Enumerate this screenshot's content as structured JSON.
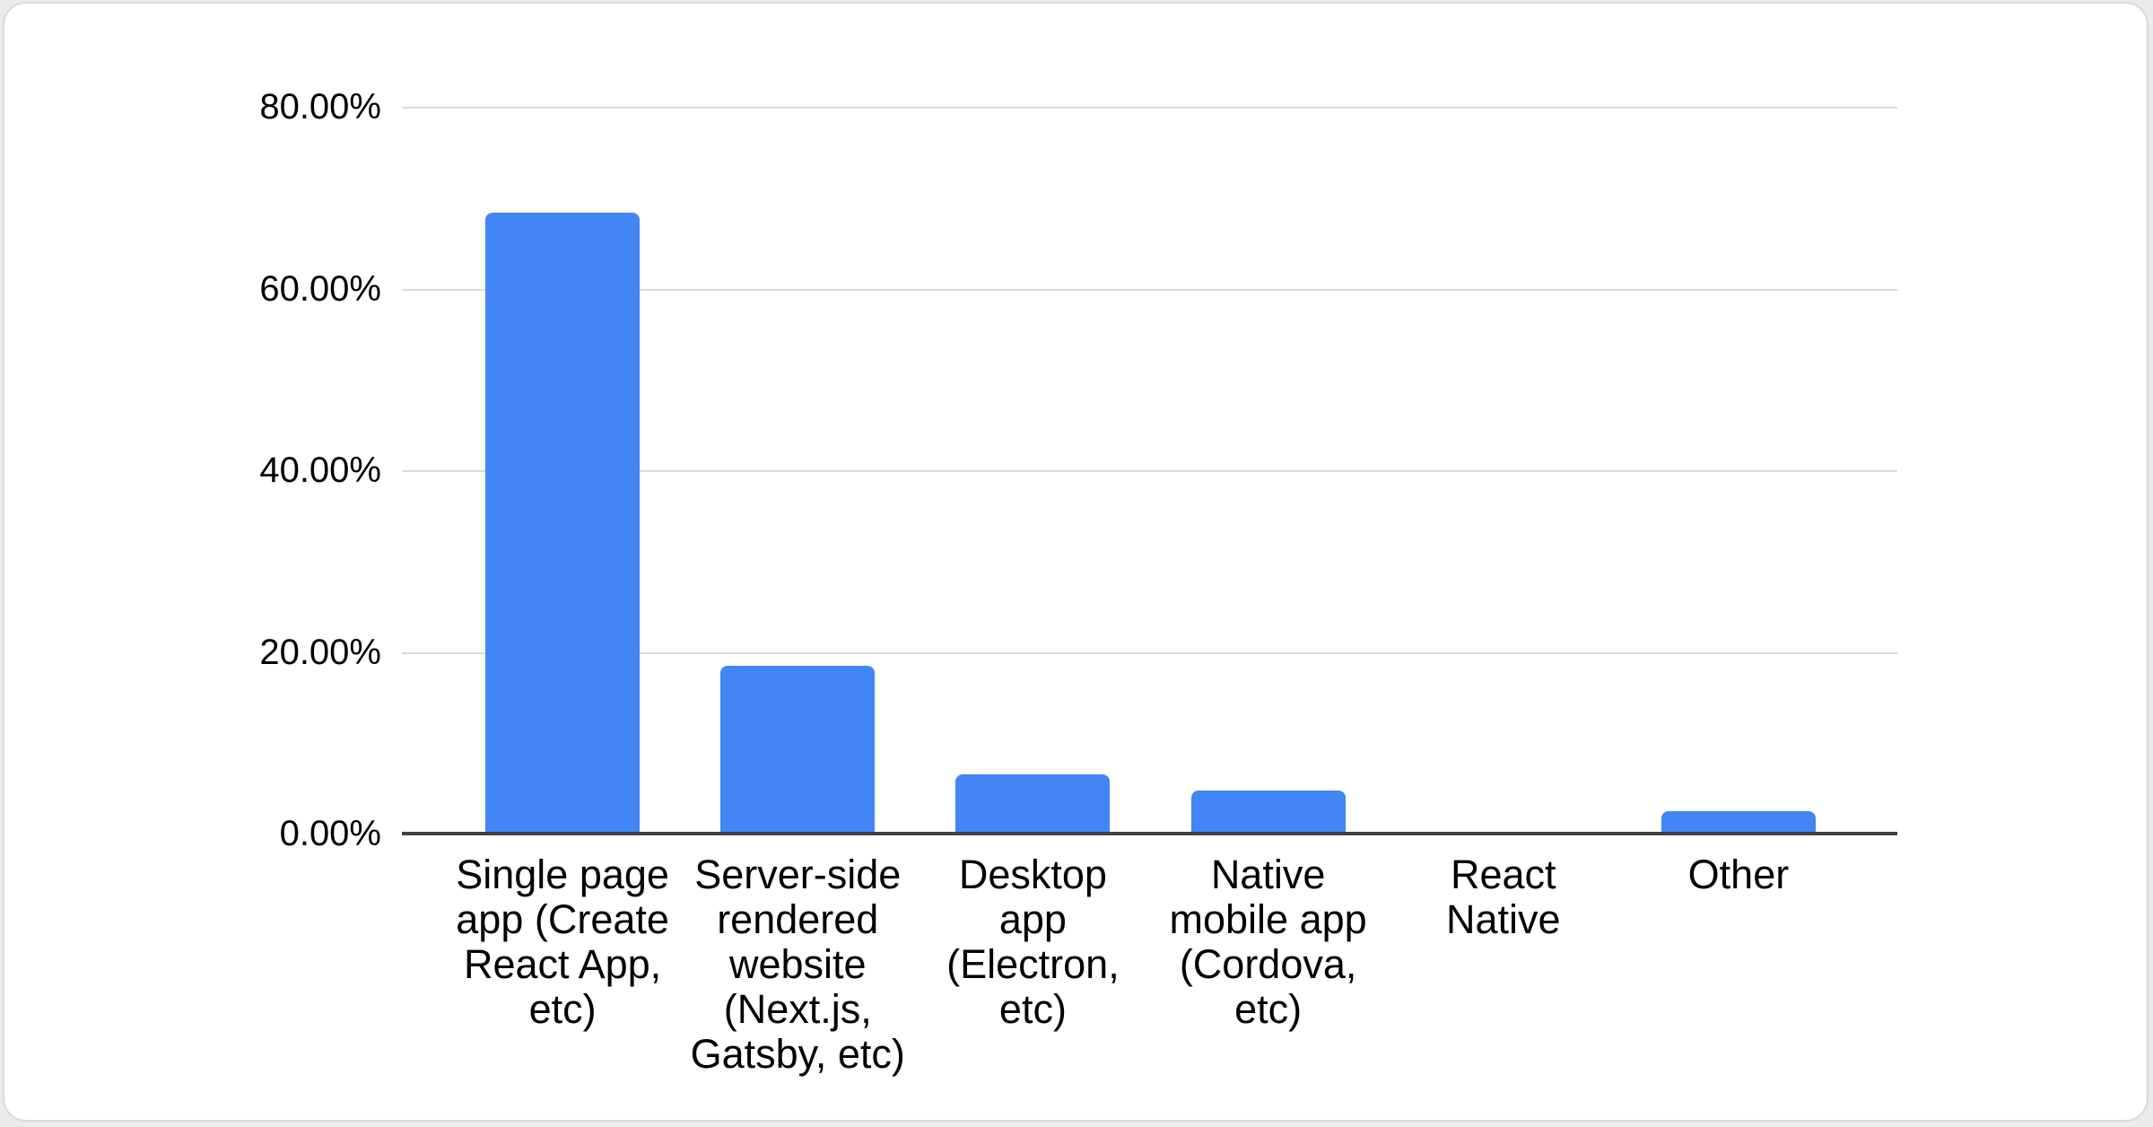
{
  "page": {
    "background_color": "#e9ebed",
    "card": {
      "background_color": "#ffffff",
      "border_color": "#d8dade"
    }
  },
  "chart_data": {
    "type": "bar",
    "title": "",
    "xlabel": "",
    "ylabel": "",
    "categories": [
      "Single page app (Create React App, etc)",
      "Server-side rendered website (Next.js, Gatsby, etc)",
      "Desktop app (Electron, etc)",
      "Native mobile app (Cordova, etc)",
      "React Native",
      "Other"
    ],
    "categories_display": [
      "Single page\napp (Create\nReact App,\netc)",
      "Server-side\nrendered\nwebsite\n(Next.js,\nGatsby, etc)",
      "Desktop\napp\n(Electron,\netc)",
      "Native\nmobile app\n(Cordova,\netc)",
      "React\nNative",
      "Other"
    ],
    "values": [
      68.3,
      18.5,
      6.5,
      4.7,
      0,
      2.5
    ],
    "value_unit": "%",
    "ylim": [
      0,
      80
    ],
    "ytick_interval": 20,
    "yticks": [
      "80.00%",
      "60.00%",
      "40.00%",
      "20.00%",
      "0.00%"
    ],
    "grid": "horizontal",
    "legend": "none",
    "colors": {
      "bar": "#4285f4",
      "gridline": "#d9d9d9",
      "axis_line": "#3e4043",
      "text": "#000000"
    }
  }
}
